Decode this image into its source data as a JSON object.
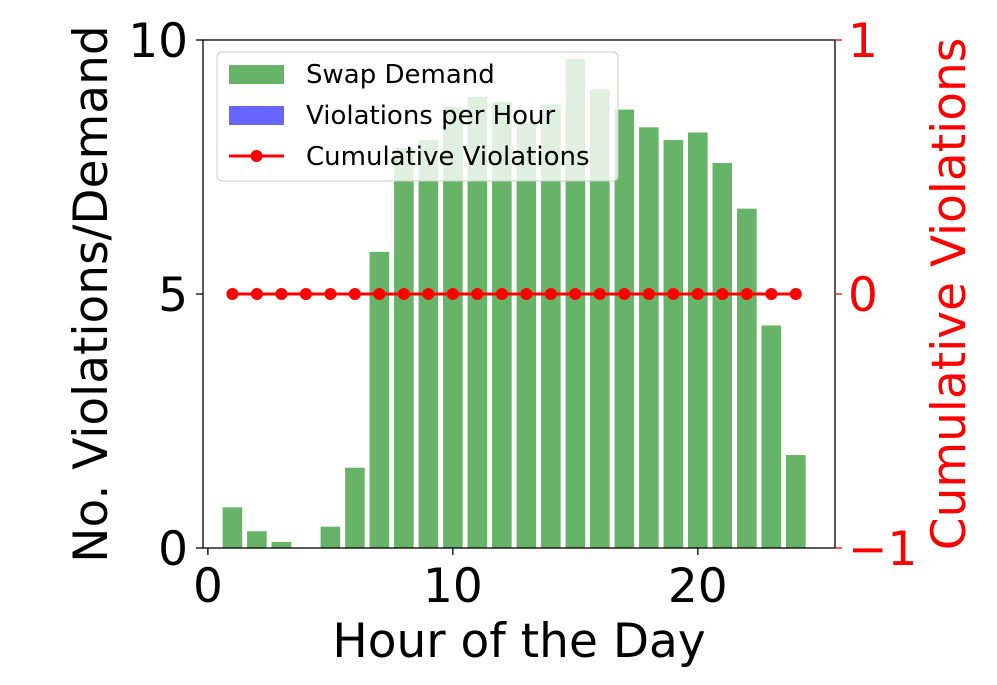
{
  "chart_data": {
    "type": "bar",
    "title": "",
    "xlabel": "Hour of the Day",
    "ylabel": "No. Violations/Demand",
    "ylabel_right": "Cumulative Violations",
    "xlim": [
      -0.2,
      25.6
    ],
    "ylim": [
      0,
      10
    ],
    "ylim_right": [
      -1,
      1
    ],
    "x_ticks": [
      0,
      10,
      20
    ],
    "y_ticks": [
      0,
      5,
      10
    ],
    "y_ticks_right": [
      -1,
      0,
      1
    ],
    "x_tick_labels": [
      "0",
      "10",
      "20"
    ],
    "y_tick_labels": [
      "0",
      "5",
      "10"
    ],
    "y_tick_labels_right": [
      "−1",
      "0",
      "1"
    ],
    "legend_position": "top-left",
    "colors": {
      "demand": "#4ca64c",
      "violations": "#6666ff",
      "cumulative": "#ff0000",
      "right_axis": "#ff0000"
    },
    "series": [
      {
        "name": "Swap Demand",
        "kind": "bar",
        "x": [
          1,
          2,
          3,
          4,
          5,
          6,
          7,
          8,
          9,
          10,
          11,
          12,
          13,
          14,
          15,
          16,
          17,
          18,
          19,
          20,
          21,
          22,
          23,
          24
        ],
        "values": [
          0.8,
          0.33,
          0.12,
          0,
          0.42,
          1.58,
          5.83,
          7.88,
          8.03,
          8.68,
          8.88,
          8.78,
          8.38,
          8.73,
          9.63,
          9.03,
          8.63,
          8.28,
          8.03,
          8.18,
          7.58,
          6.68,
          4.38,
          1.83
        ]
      },
      {
        "name": "Violations per Hour",
        "kind": "bar",
        "x": [
          1,
          2,
          3,
          4,
          5,
          6,
          7,
          8,
          9,
          10,
          11,
          12,
          13,
          14,
          15,
          16,
          17,
          18,
          19,
          20,
          21,
          22,
          23,
          24
        ],
        "values": [
          0,
          0,
          0,
          0,
          0,
          0,
          0,
          0,
          0,
          0,
          0,
          0,
          0,
          0,
          0,
          0,
          0,
          0,
          0,
          0,
          0,
          0,
          0,
          0
        ]
      },
      {
        "name": "Cumulative Violations",
        "kind": "line",
        "axis": "right",
        "x": [
          1,
          2,
          3,
          4,
          5,
          6,
          7,
          8,
          9,
          10,
          11,
          12,
          13,
          14,
          15,
          16,
          17,
          18,
          19,
          20,
          21,
          22,
          23,
          24
        ],
        "values": [
          0,
          0,
          0,
          0,
          0,
          0,
          0,
          0,
          0,
          0,
          0,
          0,
          0,
          0,
          0,
          0,
          0,
          0,
          0,
          0,
          0,
          0,
          0,
          0
        ]
      }
    ]
  }
}
